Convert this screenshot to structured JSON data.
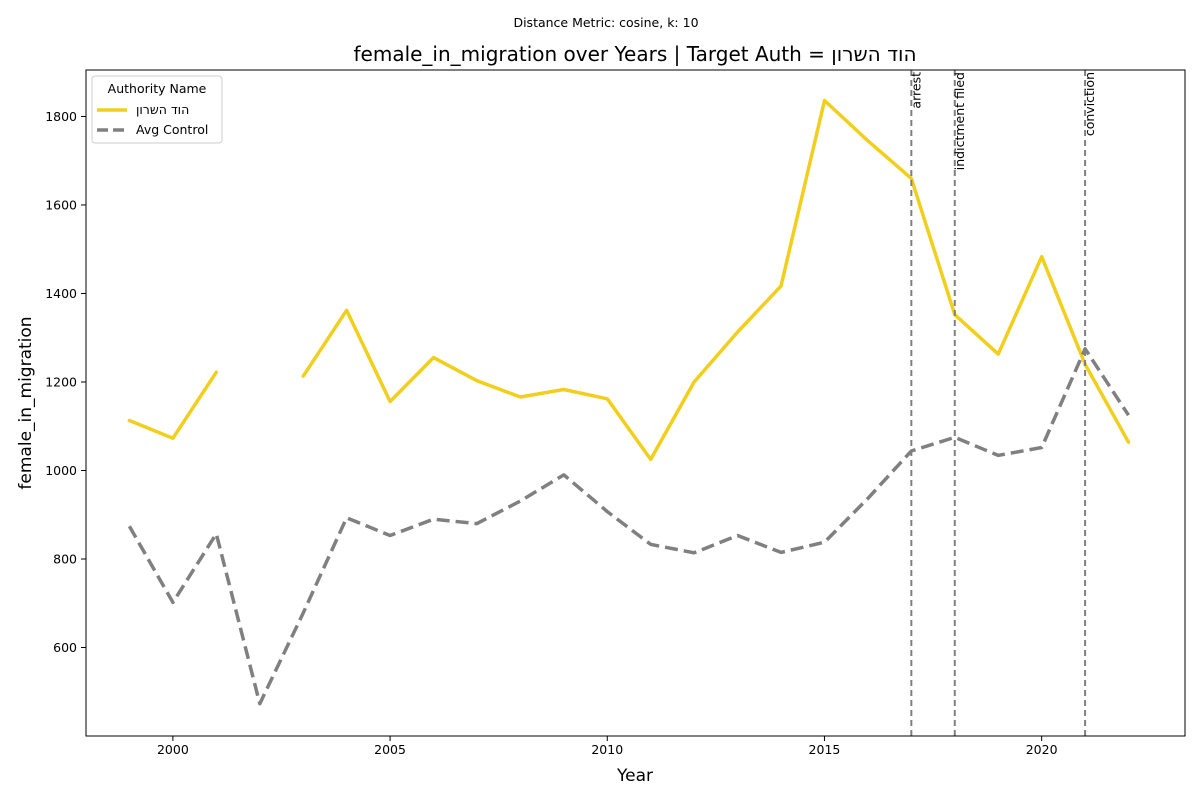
{
  "chart_data": {
    "type": "line",
    "suptitle": "Distance Metric: cosine, k: 10",
    "title": "female_in_migration over Years | Target Auth = הוד השרון",
    "xlabel": "Year",
    "ylabel": "female_in_migration",
    "xlim": [
      1998,
      2023.3
    ],
    "ylim": [
      400,
      1905
    ],
    "xticks": [
      2000,
      2005,
      2010,
      2015,
      2020
    ],
    "yticks": [
      600,
      800,
      1000,
      1200,
      1400,
      1600,
      1800
    ],
    "grid": false,
    "legend": {
      "title": "Authority Name",
      "placement": "top-left"
    },
    "series": [
      {
        "name": "הוד השרון",
        "color": "#f2cf1d",
        "style": "solid",
        "x": [
          1999,
          2000,
          2001,
          2002,
          2003,
          2004,
          2005,
          2006,
          2007,
          2008,
          2009,
          2010,
          2011,
          2012,
          2013,
          2014,
          2015,
          2016,
          2017,
          2018,
          2019,
          2020,
          2021,
          2022
        ],
        "values": [
          1113,
          1073,
          1222,
          null,
          1213,
          1362,
          1156,
          1255,
          1203,
          1166,
          1183,
          1162,
          1025,
          1200,
          1313,
          1417,
          1836,
          1745,
          1660,
          1352,
          1263,
          1483,
          1240,
          1064
        ]
      },
      {
        "name": "Avg Control",
        "color": "#808080",
        "style": "dashed",
        "x": [
          1999,
          2000,
          2001,
          2002,
          2003,
          2004,
          2005,
          2006,
          2007,
          2008,
          2009,
          2010,
          2011,
          2012,
          2013,
          2014,
          2015,
          2016,
          2017,
          2018,
          2019,
          2020,
          2021,
          2022
        ],
        "values": [
          874,
          702,
          857,
          473,
          678,
          893,
          853,
          890,
          880,
          931,
          990,
          907,
          833,
          814,
          853,
          815,
          838,
          937,
          1044,
          1075,
          1034,
          1052,
          1275,
          1125
        ]
      }
    ],
    "events": [
      {
        "x": 2017,
        "label": "arrest"
      },
      {
        "x": 2018,
        "label": "indictment filed"
      },
      {
        "x": 2021,
        "label": "conviction"
      }
    ]
  }
}
